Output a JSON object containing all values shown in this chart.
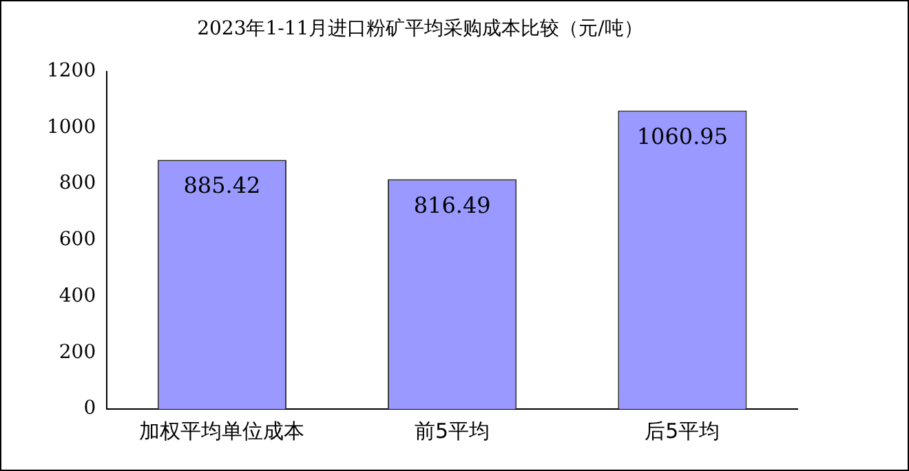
{
  "chart_data": {
    "type": "bar",
    "title": "2023年1-11月进口粉矿平均采购成本比较（元/吨）",
    "categories": [
      "加权平均单位成本",
      "前5平均",
      "后5平均"
    ],
    "values": [
      885.42,
      816.49,
      1060.95
    ],
    "value_labels": [
      "885.42",
      "816.49",
      "1060.95"
    ],
    "color": "#9999ff",
    "ylim": [
      0,
      1200
    ],
    "yticks": [
      0,
      200,
      400,
      600,
      800,
      1000,
      1200
    ],
    "grid": false,
    "legend": false
  }
}
